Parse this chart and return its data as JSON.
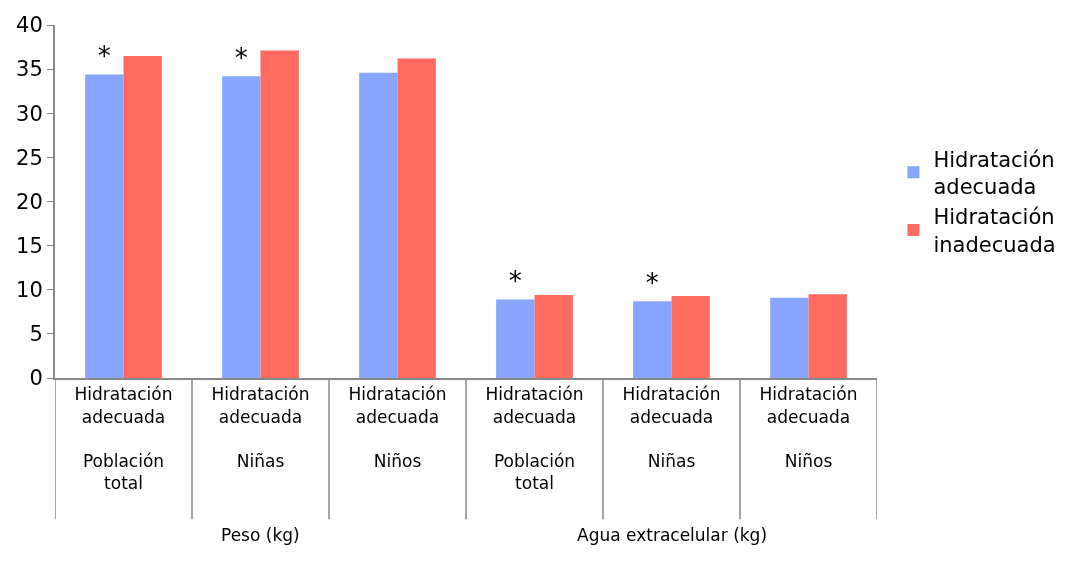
{
  "chart_data": {
    "type": "bar",
    "categories": [
      "Hidratación adecuada\nPoblación total",
      "Hidratación adecuada\nNiñas",
      "Hidratación adecuada\nNiños",
      "Hidratación adecuada\nPoblación total",
      "Hidratación adecuada\nNiñas",
      "Hidratación adecuada\nNiños"
    ],
    "series": [
      {
        "name": "Hidratación adecuada",
        "color": "#88a6ff",
        "values": [
          34.4,
          34.2,
          34.6,
          8.9,
          8.7,
          9.1
        ],
        "value_labels": [
          "*",
          "*",
          null,
          "*",
          "*",
          null
        ]
      },
      {
        "name": "Hidratación inadecuada",
        "color": "#ff6b5f",
        "values": [
          36.5,
          37.1,
          36.2,
          9.4,
          9.3,
          9.5
        ]
      }
    ],
    "annotations": [
      "Peso (kg)",
      "Agua extracelular (kg)"
    ],
    "ylim": [
      0,
      40
    ],
    "yticks": [
      0,
      5,
      10,
      15,
      20,
      25,
      30,
      35,
      40
    ],
    "grid": false,
    "legend": "right"
  }
}
